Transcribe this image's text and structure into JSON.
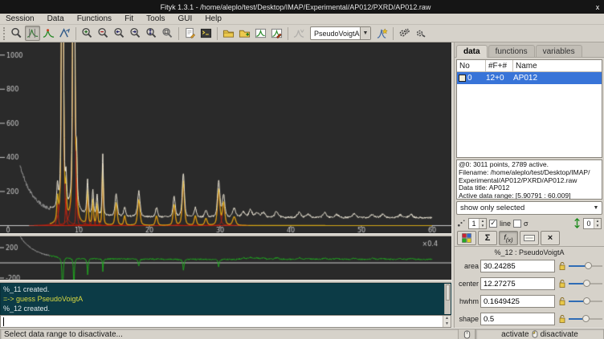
{
  "window": {
    "title": "Fityk 1.3.1 - /home/aleplo/test/Desktop/IMAP/Experimental/AP012/PXRD/AP012.raw",
    "close": "x"
  },
  "menu": {
    "items": [
      "Session",
      "Data",
      "Functions",
      "Fit",
      "Tools",
      "GUI",
      "Help"
    ]
  },
  "toolbar": {
    "function_type": "PseudoVoigtA"
  },
  "sidebar": {
    "tabs": [
      {
        "label": "data"
      },
      {
        "label": "functions"
      },
      {
        "label": "variables"
      }
    ],
    "table": {
      "headers": [
        "No",
        "#F+#",
        "Name"
      ],
      "rows": [
        {
          "no": "0",
          "fplus": "12+0",
          "name": "AP012",
          "selected": true,
          "color": "#f2edd7"
        }
      ]
    },
    "info_lines": [
      "@0: 3011 points, 2789 active.",
      "Filename: /home/aleplo/test/Desktop/IMAP/",
      "Experimental/AP012/PXRD/AP012.raw",
      "Data title: AP012",
      "Active data range: [5.90791 : 60.009]"
    ],
    "filter_dropdown": "show only selected",
    "point_size": "1",
    "line_label": "line",
    "line_checked": true,
    "sigma_label": "σ",
    "sigma_checked": false,
    "shift_value": "0",
    "function_header": "%_12 : PseudoVoigtA",
    "params": [
      {
        "label": "area",
        "value": "30.24285",
        "slider": 0.62
      },
      {
        "label": "center",
        "value": "12.27275",
        "slider": 0.56
      },
      {
        "label": "hwhm",
        "value": "0.1649425",
        "slider": 0.55
      },
      {
        "label": "shape",
        "value": "0.5",
        "slider": 0.53
      }
    ]
  },
  "console": {
    "lines": [
      {
        "text": "%_11 created.",
        "color": "#dde6e6"
      },
      {
        "text": "=-> guess PseudoVoigtA",
        "color": "#d8d840"
      },
      {
        "text": "%_12 created.",
        "color": "#dde6e6"
      }
    ]
  },
  "statusbar": {
    "hint": "Select data range to disactivate...",
    "activate": "activate",
    "disactivate": "disactivate"
  },
  "chart_data": {
    "type": "line",
    "title": "powder XRD pattern with fitted PseudoVoigtA peaks",
    "main_plot": {
      "xlim": [
        0,
        62.7
      ],
      "ylim": [
        0,
        1080
      ],
      "x_ticks": [
        0,
        10,
        20,
        30,
        40,
        50,
        60
      ],
      "y_ticks": [
        200,
        400,
        600,
        800,
        1000
      ],
      "active_range": [
        5.90791,
        60.009
      ],
      "inactive_left_start": 1.7,
      "background": {
        "base": 46,
        "a1": 270,
        "d1": 1.9,
        "a2": 35,
        "d2": 8.0,
        "x0": 1.7
      },
      "peaks": [
        [
          7.0,
          130,
          0.12
        ],
        [
          7.7,
          2600,
          0.14
        ],
        [
          8.2,
          160,
          0.1
        ],
        [
          9.3,
          2900,
          0.14
        ],
        [
          9.7,
          280,
          0.1
        ],
        [
          11.25,
          200,
          0.12
        ],
        [
          12.0,
          140,
          0.12
        ],
        [
          12.6,
          120,
          0.12
        ],
        [
          13.4,
          360,
          0.1
        ],
        [
          15.3,
          130,
          0.18
        ],
        [
          16.5,
          55,
          0.15
        ],
        [
          18.5,
          150,
          0.2
        ],
        [
          21.0,
          55,
          0.18
        ],
        [
          23.5,
          120,
          0.18
        ],
        [
          24.8,
          260,
          0.18
        ],
        [
          26.5,
          55,
          0.18
        ],
        [
          28.0,
          40,
          0.2
        ],
        [
          29.8,
          210,
          0.2
        ],
        [
          30.5,
          130,
          0.2
        ],
        [
          32.0,
          50,
          0.25
        ]
      ],
      "extra_bumps": [
        [
          33.3,
          30,
          0.3
        ],
        [
          34.3,
          45,
          0.25
        ],
        [
          35.2,
          28,
          0.3
        ],
        [
          36.1,
          30,
          0.3
        ],
        [
          38.0,
          35,
          0.3
        ],
        [
          41.2,
          30,
          0.3
        ],
        [
          42.5,
          20,
          0.3
        ],
        [
          44.8,
          28,
          0.3
        ],
        [
          46.5,
          18,
          0.3
        ],
        [
          49.0,
          22,
          0.3
        ],
        [
          51.5,
          18,
          0.3
        ],
        [
          53.0,
          20,
          0.3
        ],
        [
          55.5,
          15,
          0.3
        ],
        [
          57.0,
          18,
          0.3
        ]
      ],
      "noise_amp": 5.5,
      "colors": {
        "bg": "#2a2a2a",
        "data_active": "#e8e2d2",
        "data_inactive": "#8f8f8f",
        "model": "#d3a614",
        "peaks": "#bb2211",
        "axis": "#c8c8c8"
      }
    },
    "aux_plot": {
      "scale_label": "×0.4",
      "scale": 0.4,
      "y_ticks": [
        200,
        -200
      ],
      "residual_spikes": [
        [
          7.72,
          -900,
          0.06
        ],
        [
          9.32,
          -520,
          0.06
        ],
        [
          11.27,
          -220,
          0.08
        ],
        [
          13.42,
          -170,
          0.06
        ],
        [
          18.5,
          -90,
          0.1
        ],
        [
          24.82,
          -140,
          0.1
        ],
        [
          29.8,
          -100,
          0.1
        ]
      ],
      "noise_amp": 9,
      "colors": {
        "bg": "#2a2a2a",
        "residual": "#1fa51f",
        "inactive": "#8f8f8f",
        "zero_line": "#d0d0d0"
      }
    }
  }
}
